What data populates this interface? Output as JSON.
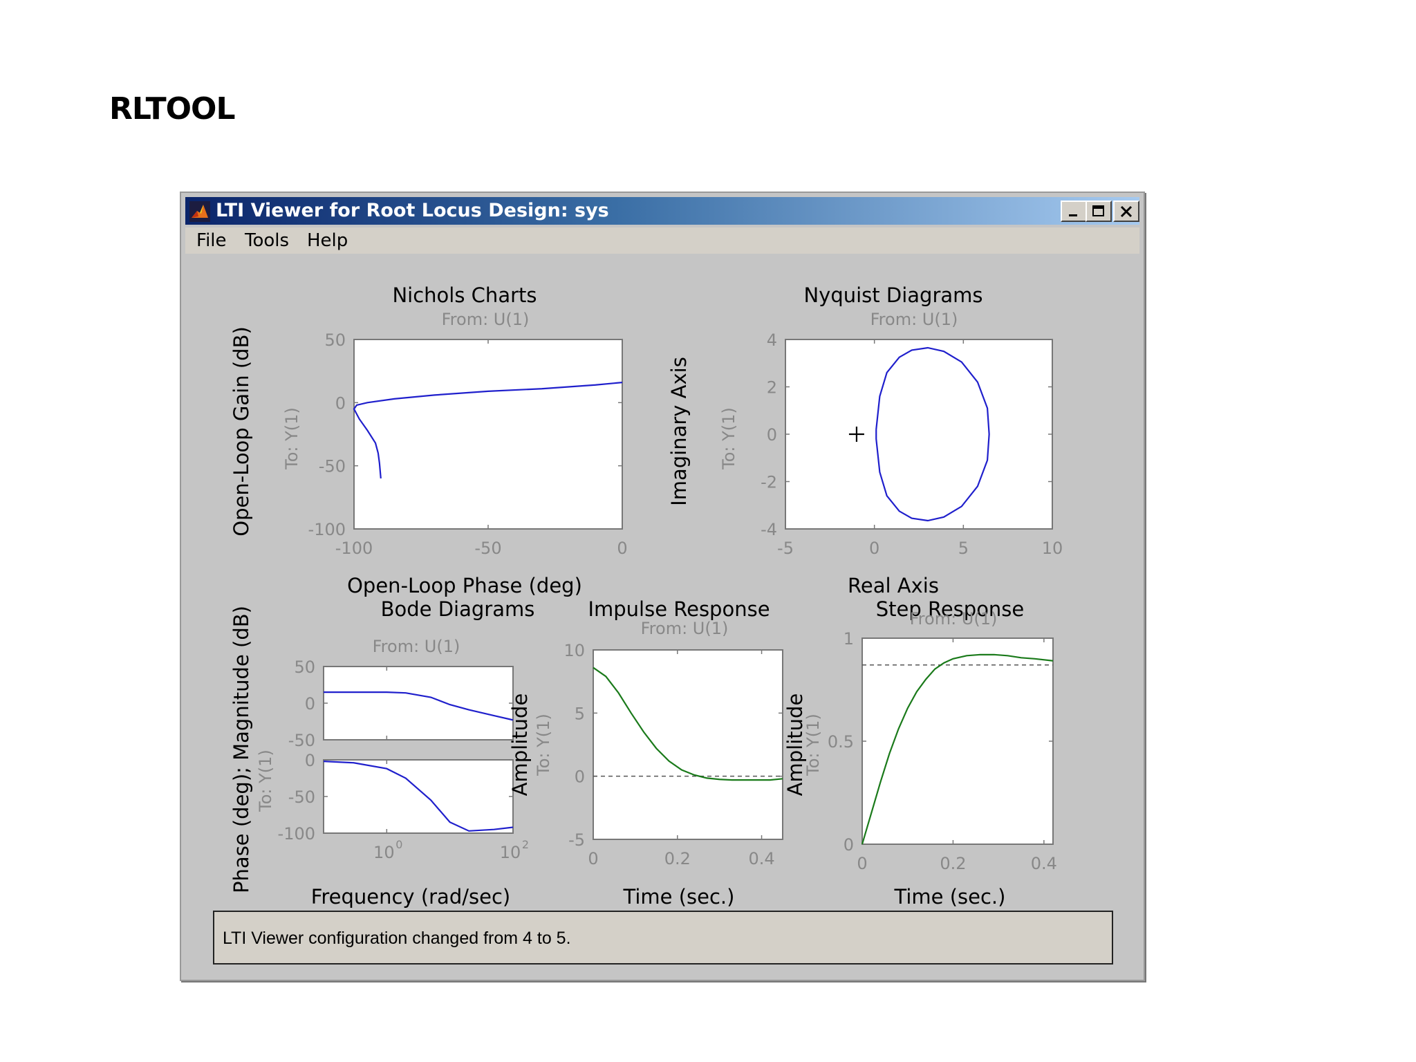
{
  "page": {
    "title": "RLTOOL"
  },
  "window": {
    "title": "LTI Viewer for Root Locus Design: sys",
    "icons": {
      "app": "matlab-logo-icon",
      "minimize": "minimize-icon",
      "maximize": "maximize-icon",
      "close": "close-icon"
    }
  },
  "menu": {
    "items": [
      "File",
      "Tools",
      "Help"
    ]
  },
  "status": {
    "text": "LTI Viewer configuration changed from 4 to 5."
  },
  "colors": {
    "open_loop": "#1f1fcc",
    "closed_loop": "#1a7a1a",
    "title_bar": "#0a246a"
  },
  "chart_data": [
    {
      "type": "line",
      "title": "Nichols Charts",
      "subtitle": "From: U(1)",
      "io_label": "To: Y(1)",
      "xlabel": "Open-Loop Phase (deg)",
      "ylabel": "Open-Loop Gain (dB)",
      "xlim": [
        -100,
        0
      ],
      "ylim": [
        -100,
        50
      ],
      "xticks": [
        "-100",
        "-50",
        "0"
      ],
      "yticks": [
        "50",
        "0",
        "-50",
        "-100"
      ],
      "series": [
        {
          "x": [
            -90,
            -90.5,
            -91,
            -92,
            -95,
            -98,
            -100,
            -99,
            -95,
            -85,
            -70,
            -50,
            -30,
            -10,
            0
          ],
          "y": [
            -60,
            -48,
            -40,
            -32,
            -22,
            -13,
            -5,
            -2,
            0,
            3,
            6,
            9,
            11,
            14,
            16
          ]
        }
      ]
    },
    {
      "type": "line",
      "title": "Nyquist Diagrams",
      "subtitle": "From: U(1)",
      "io_label": "To: Y(1)",
      "xlabel": "Real Axis",
      "ylabel": "Imaginary Axis",
      "xlim": [
        -5,
        10
      ],
      "ylim": [
        -4,
        4
      ],
      "xticks": [
        "-5",
        "0",
        "5",
        "10"
      ],
      "yticks": [
        "4",
        "2",
        "0",
        "-2",
        "-4"
      ],
      "critical_point": [
        -1,
        0
      ],
      "series": [
        {
          "x": [
            0.1,
            0.3,
            0.7,
            1.4,
            2.1,
            3.0,
            3.9,
            4.9,
            5.8,
            6.35,
            6.45,
            6.35,
            5.8,
            4.9,
            3.9,
            3.0,
            2.1,
            1.4,
            0.7,
            0.3,
            0.1
          ],
          "y": [
            0.2,
            1.6,
            2.6,
            3.25,
            3.55,
            3.65,
            3.5,
            3.05,
            2.2,
            1.1,
            0,
            -1.1,
            -2.2,
            -3.05,
            -3.5,
            -3.65,
            -3.55,
            -3.25,
            -2.6,
            -1.6,
            -0.2
          ]
        }
      ]
    },
    {
      "type": "line",
      "title": "Bode Diagrams",
      "subtitle": "From: U(1)",
      "io_label": "To: Y(1)",
      "xlabel": "Frequency (rad/sec)",
      "ylabel": "Phase (deg); Magnitude (dB)",
      "xscale": "log",
      "xlim": [
        0.1,
        100
      ],
      "xticks": [
        "10",
        "10"
      ],
      "xtick_exponents": [
        "0",
        "2"
      ],
      "magnitude": {
        "ylim": [
          -50,
          50
        ],
        "yticks": [
          "50",
          "0",
          "-50"
        ],
        "x": [
          0.1,
          0.3,
          1,
          2,
          5,
          10,
          20,
          50,
          100
        ],
        "y": [
          15,
          15,
          15,
          14,
          8,
          -2,
          -9,
          -17,
          -23
        ]
      },
      "phase": {
        "ylim": [
          -100,
          0
        ],
        "yticks": [
          "0",
          "-50",
          "-100"
        ],
        "x": [
          0.1,
          0.3,
          1,
          2,
          5,
          10,
          20,
          50,
          100
        ],
        "y": [
          -2,
          -4,
          -12,
          -25,
          -55,
          -85,
          -97,
          -95,
          -92
        ]
      }
    },
    {
      "type": "line",
      "title": "Impulse Response",
      "subtitle": "From: U(1)",
      "io_label": "To: Y(1)",
      "xlabel": "Time (sec.)",
      "ylabel": "Amplitude",
      "xlim": [
        0,
        0.45
      ],
      "ylim": [
        -5,
        10
      ],
      "xticks": [
        "0",
        "0.2",
        "0.4"
      ],
      "yticks": [
        "10",
        "5",
        "0",
        "-5"
      ],
      "reference_line": 0,
      "series": [
        {
          "x": [
            0,
            0.03,
            0.06,
            0.09,
            0.12,
            0.15,
            0.18,
            0.21,
            0.24,
            0.27,
            0.3,
            0.33,
            0.36,
            0.39,
            0.42,
            0.45
          ],
          "y": [
            8.6,
            7.9,
            6.6,
            5.0,
            3.5,
            2.2,
            1.2,
            0.5,
            0.1,
            -0.15,
            -0.25,
            -0.3,
            -0.3,
            -0.3,
            -0.3,
            -0.2
          ]
        }
      ]
    },
    {
      "type": "line",
      "title": "Step Response",
      "subtitle": "From: U(1)",
      "io_label": "To: Y(1)",
      "xlabel": "Time (sec.)",
      "ylabel": "Amplitude",
      "xlim": [
        0,
        0.42
      ],
      "ylim": [
        0,
        1
      ],
      "xticks": [
        "0",
        "0.2",
        "0.4"
      ],
      "yticks": [
        "1",
        "0.5",
        "0"
      ],
      "reference_line": 0.87,
      "series": [
        {
          "x": [
            0,
            0.02,
            0.04,
            0.06,
            0.08,
            0.1,
            0.12,
            0.14,
            0.16,
            0.18,
            0.2,
            0.23,
            0.26,
            0.29,
            0.32,
            0.35,
            0.38,
            0.42
          ],
          "y": [
            0,
            0.15,
            0.3,
            0.44,
            0.56,
            0.66,
            0.74,
            0.8,
            0.85,
            0.88,
            0.9,
            0.915,
            0.92,
            0.92,
            0.915,
            0.905,
            0.9,
            0.89
          ]
        }
      ]
    }
  ]
}
